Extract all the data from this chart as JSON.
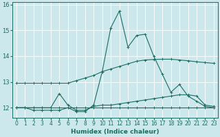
{
  "title": "",
  "xlabel": "Humidex (Indice chaleur)",
  "bg_color": "#cce8ec",
  "line_color": "#1a6b60",
  "grid_color": "#ffffff",
  "xlim": [
    -0.5,
    23.5
  ],
  "ylim": [
    11.6,
    16.1
  ],
  "yticks": [
    12,
    13,
    14,
    15,
    16
  ],
  "xticks": [
    0,
    1,
    2,
    3,
    4,
    5,
    6,
    7,
    8,
    9,
    10,
    11,
    12,
    13,
    14,
    15,
    16,
    17,
    18,
    19,
    20,
    21,
    22,
    23
  ],
  "series": [
    {
      "x": [
        0,
        1,
        2,
        3,
        4,
        5,
        6,
        7,
        8,
        9,
        10,
        11,
        12,
        13,
        14,
        15,
        16,
        17,
        18,
        19,
        20,
        21,
        22,
        23
      ],
      "y": [
        12.95,
        12.95,
        12.95,
        12.95,
        12.95,
        12.95,
        12.95,
        13.05,
        13.15,
        13.25,
        13.4,
        13.5,
        13.6,
        13.7,
        13.8,
        13.85,
        13.87,
        13.88,
        13.88,
        13.85,
        13.82,
        13.78,
        13.75,
        13.72
      ]
    },
    {
      "x": [
        0,
        1,
        2,
        3,
        4,
        5,
        6,
        7,
        8,
        9,
        10,
        11,
        12,
        13,
        14,
        15,
        16,
        17,
        18,
        19,
        20,
        21,
        22,
        23
      ],
      "y": [
        12.0,
        12.0,
        12.0,
        12.0,
        12.0,
        12.55,
        12.1,
        11.9,
        11.9,
        12.05,
        12.1,
        12.1,
        12.15,
        12.2,
        12.25,
        12.3,
        12.35,
        12.4,
        12.45,
        12.5,
        12.5,
        12.45,
        12.1,
        12.05
      ]
    },
    {
      "x": [
        0,
        1,
        2,
        3,
        4,
        5,
        6,
        7,
        8,
        9,
        10,
        11,
        12,
        13,
        14,
        15,
        16,
        17,
        18,
        19,
        20,
        21,
        22,
        23
      ],
      "y": [
        12.0,
        12.0,
        12.0,
        12.0,
        12.0,
        12.0,
        12.0,
        12.0,
        12.0,
        12.0,
        12.0,
        12.0,
        12.0,
        12.0,
        12.0,
        12.0,
        12.0,
        12.0,
        12.0,
        12.0,
        12.0,
        12.0,
        12.0,
        12.0
      ]
    },
    {
      "x": [
        0,
        1,
        2,
        3,
        4,
        5,
        6,
        7,
        8,
        9,
        10,
        11,
        12,
        13,
        14,
        15,
        16,
        17,
        18,
        19,
        20,
        21,
        22,
        23
      ],
      "y": [
        12.0,
        12.0,
        11.9,
        11.9,
        11.9,
        11.9,
        12.0,
        11.85,
        11.85,
        12.1,
        13.4,
        15.1,
        15.75,
        14.35,
        14.8,
        14.85,
        14.0,
        13.3,
        12.6,
        12.9,
        12.45,
        12.25,
        12.05,
        12.0
      ]
    }
  ]
}
